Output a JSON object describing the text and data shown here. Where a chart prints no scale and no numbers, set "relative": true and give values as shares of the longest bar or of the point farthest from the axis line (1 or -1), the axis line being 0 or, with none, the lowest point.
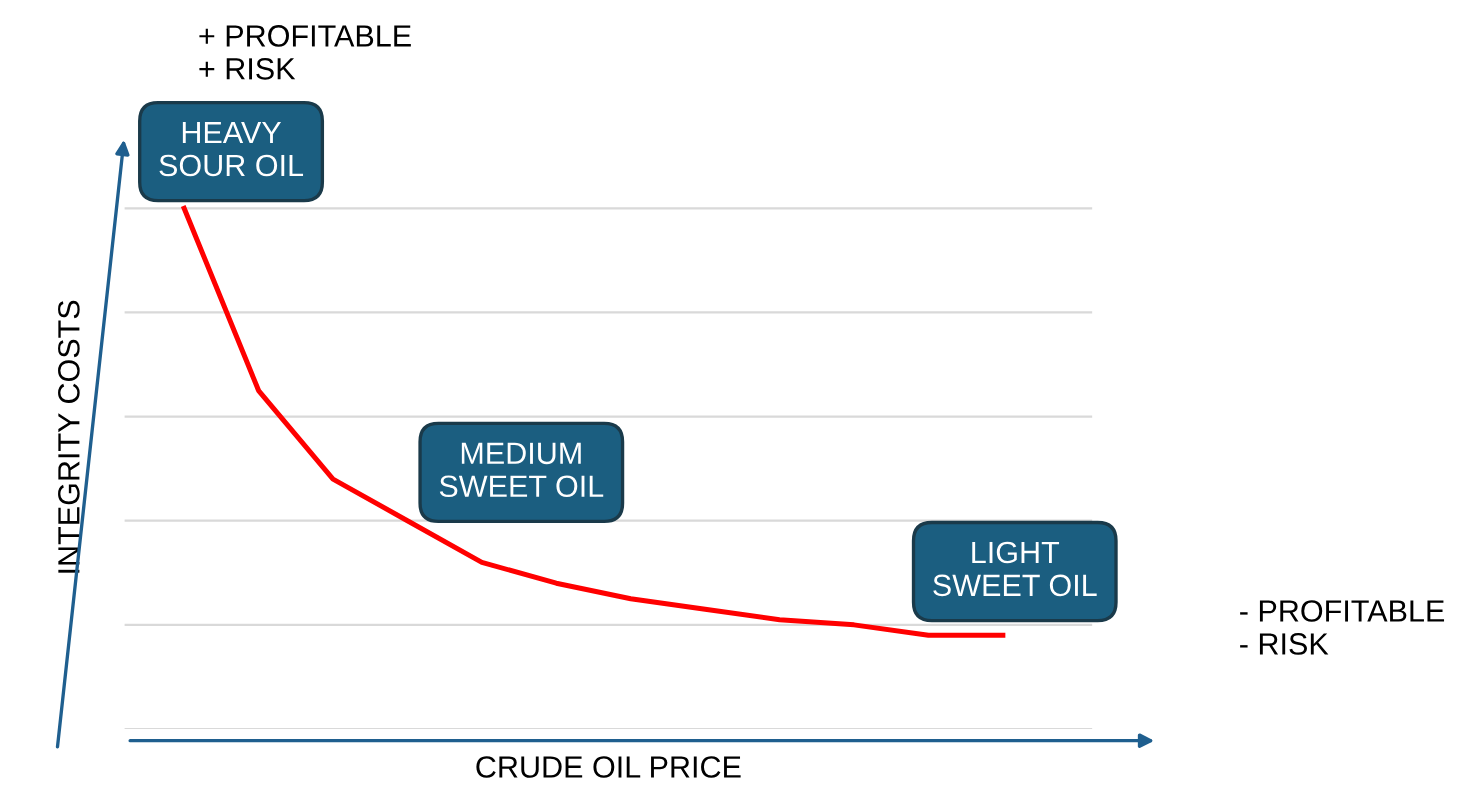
{
  "chart_data": {
    "type": "line",
    "relative": true,
    "xlabel": "CRUDE OIL PRICE",
    "ylabel": "INTEGRITY COSTS",
    "categories": [
      null,
      null,
      null,
      null,
      null,
      null,
      null,
      null,
      null,
      null,
      null,
      null
    ],
    "series": [
      {
        "color": "#ff0000",
        "values": [
          1,
          0.65,
          0.48,
          0.4,
          0.32,
          0.28,
          0.25,
          0.23,
          0.21,
          0.2,
          0.18,
          0.18
        ]
      }
    ],
    "annotations": [
      "HEAVY\nSOUR OIL",
      "MEDIUM\nSWEET OIL",
      "LIGHT\nSWEET OIL",
      "+ PROFITABLE\n+ RISK",
      "- PROFITABLE\n- RISK"
    ],
    "grid": "y",
    "marker": "none",
    "line_style": "solid"
  }
}
